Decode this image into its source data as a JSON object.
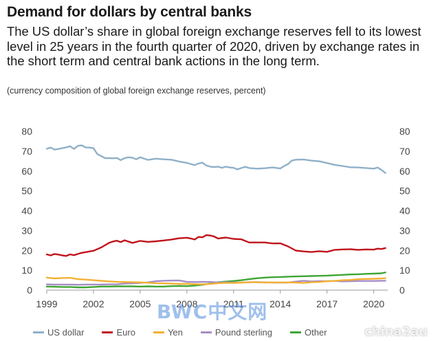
{
  "title": "Demand for dollars by central banks",
  "subtitle": "The US dollar’s share in global foreign exchange reserves fell to its lowest level in 25 years in the fourth quarter of 2020, driven by exchange rates in the short term and central bank actions in the long term.",
  "note": "(currency composition of global foreign exchange reserves, percent)",
  "watermark": "BWC中文网",
  "watermark2": "china2au",
  "chart_data": {
    "type": "line",
    "x_tick_labels": [
      "1999",
      "2002",
      "2005",
      "2008",
      "2011",
      "2014",
      "2017",
      "2020"
    ],
    "x_ticks": [
      1999,
      2002,
      2005,
      2008,
      2011,
      2014,
      2017,
      2020
    ],
    "xlim": [
      1999,
      2020.9
    ],
    "ylim": [
      0,
      80
    ],
    "y_ticks": [
      0,
      10,
      20,
      30,
      40,
      50,
      60,
      70,
      80
    ],
    "y_tick_labels": [
      "0",
      "10",
      "20",
      "30",
      "40",
      "50",
      "60",
      "70",
      "80"
    ],
    "right_axis_mirrors_left": true,
    "grid": false,
    "legend_position": "bottom",
    "series": [
      {
        "name": "US dollar",
        "color": "#8fb0c8",
        "x": [
          1999.0,
          1999.25,
          1999.5,
          1999.75,
          2000.0,
          2000.25,
          2000.5,
          2000.75,
          2001.0,
          2001.25,
          2001.5,
          2001.75,
          2002.0,
          2002.25,
          2002.5,
          2002.75,
          2003.0,
          2003.25,
          2003.5,
          2003.75,
          2004.0,
          2004.25,
          2004.5,
          2004.75,
          2005.0,
          2005.5,
          2006.0,
          2006.5,
          2007.0,
          2007.5,
          2008.0,
          2008.25,
          2008.5,
          2008.75,
          2009.0,
          2009.25,
          2009.5,
          2009.75,
          2010.0,
          2010.25,
          2010.5,
          2010.75,
          2011.0,
          2011.25,
          2011.5,
          2011.75,
          2012.0,
          2012.5,
          2013.0,
          2013.5,
          2014.0,
          2014.25,
          2014.5,
          2014.75,
          2015.0,
          2015.5,
          2016.0,
          2016.5,
          2017.0,
          2017.5,
          2018.0,
          2018.5,
          2019.0,
          2019.5,
          2020.0,
          2020.25,
          2020.5,
          2020.75
        ],
        "y": [
          71.2,
          71.8,
          70.8,
          71.1,
          71.5,
          71.9,
          72.5,
          71.1,
          72.7,
          72.9,
          71.9,
          71.8,
          71.5,
          68.5,
          67.5,
          66.5,
          66.5,
          66.4,
          66.6,
          65.5,
          66.5,
          66.9,
          66.7,
          65.9,
          66.9,
          65.6,
          66.2,
          65.9,
          65.7,
          64.8,
          64.1,
          63.5,
          63.0,
          63.8,
          64.2,
          62.8,
          62.2,
          62.0,
          62.2,
          61.6,
          62.2,
          61.8,
          61.6,
          60.8,
          61.5,
          62.1,
          61.5,
          61.2,
          61.4,
          61.8,
          61.3,
          62.5,
          63.5,
          65.3,
          65.7,
          65.8,
          65.2,
          64.9,
          64.0,
          63.1,
          62.5,
          61.9,
          61.8,
          61.5,
          61.2,
          61.8,
          60.5,
          59.0
        ]
      },
      {
        "name": "Euro",
        "color": "#c0141b",
        "x": [
          1999.0,
          1999.25,
          1999.5,
          1999.75,
          2000.0,
          2000.25,
          2000.5,
          2000.75,
          2001.0,
          2001.25,
          2001.5,
          2001.75,
          2002.0,
          2002.5,
          2003.0,
          2003.25,
          2003.5,
          2003.75,
          2004.0,
          2004.5,
          2005.0,
          2005.5,
          2006.0,
          2006.5,
          2007.0,
          2007.5,
          2008.0,
          2008.25,
          2008.5,
          2008.75,
          2009.0,
          2009.25,
          2009.5,
          2009.75,
          2010.0,
          2010.5,
          2011.0,
          2011.5,
          2012.0,
          2012.5,
          2013.0,
          2013.5,
          2014.0,
          2014.5,
          2015.0,
          2015.5,
          2016.0,
          2016.5,
          2017.0,
          2017.5,
          2018.0,
          2018.5,
          2019.0,
          2019.5,
          2020.0,
          2020.25,
          2020.5,
          2020.75
        ],
        "y": [
          18.0,
          17.5,
          18.2,
          17.9,
          17.5,
          17.2,
          18.0,
          17.6,
          18.2,
          18.8,
          19.1,
          19.5,
          19.8,
          21.5,
          23.8,
          24.5,
          24.9,
          24.2,
          25.1,
          23.8,
          24.8,
          24.3,
          24.6,
          25.0,
          25.5,
          26.1,
          26.4,
          26.0,
          25.5,
          26.8,
          26.6,
          27.7,
          27.5,
          27.0,
          26.0,
          26.5,
          25.8,
          25.6,
          24.0,
          24.0,
          24.0,
          23.5,
          23.6,
          22.0,
          19.9,
          19.5,
          19.2,
          19.6,
          19.3,
          20.3,
          20.5,
          20.6,
          20.3,
          20.5,
          20.4,
          20.9,
          20.7,
          21.2
        ]
      },
      {
        "name": "Yen",
        "color": "#f2b134",
        "x": [
          1999.0,
          1999.5,
          2000.0,
          2000.5,
          2001.0,
          2001.5,
          2002.0,
          2002.5,
          2003.0,
          2003.5,
          2004.0,
          2004.5,
          2005.0,
          2005.5,
          2006.0,
          2006.5,
          2007.0,
          2007.5,
          2008.0,
          2008.5,
          2009.0,
          2009.5,
          2010.0,
          2010.5,
          2011.0,
          2011.5,
          2012.0,
          2012.5,
          2013.0,
          2013.5,
          2014.0,
          2014.5,
          2015.0,
          2015.5,
          2016.0,
          2016.5,
          2017.0,
          2017.5,
          2018.0,
          2018.5,
          2019.0,
          2019.5,
          2020.0,
          2020.5,
          2020.75
        ],
        "y": [
          6.3,
          5.9,
          6.1,
          6.2,
          5.5,
          5.3,
          5.0,
          4.7,
          4.4,
          4.2,
          4.1,
          4.0,
          3.9,
          3.7,
          3.5,
          3.4,
          3.3,
          3.1,
          3.2,
          3.0,
          2.9,
          3.1,
          3.5,
          3.6,
          3.6,
          3.8,
          3.9,
          4.0,
          3.8,
          3.9,
          3.8,
          3.9,
          3.8,
          3.6,
          4.0,
          4.1,
          4.5,
          4.6,
          5.0,
          5.1,
          5.5,
          5.6,
          5.7,
          5.9,
          6.0
        ]
      },
      {
        "name": "Pound sterling",
        "color": "#a58dc4",
        "x": [
          1999.0,
          1999.5,
          2000.0,
          2000.5,
          2001.0,
          2001.5,
          2002.0,
          2002.5,
          2003.0,
          2003.5,
          2004.0,
          2004.5,
          2005.0,
          2005.5,
          2006.0,
          2006.5,
          2007.0,
          2007.5,
          2008.0,
          2008.5,
          2009.0,
          2009.5,
          2010.0,
          2010.5,
          2011.0,
          2011.5,
          2012.0,
          2012.5,
          2013.0,
          2013.5,
          2014.0,
          2014.5,
          2015.0,
          2015.5,
          2016.0,
          2016.5,
          2017.0,
          2017.5,
          2018.0,
          2018.5,
          2019.0,
          2019.5,
          2020.0,
          2020.5,
          2020.75
        ],
        "y": [
          2.9,
          2.8,
          2.8,
          2.8,
          2.7,
          2.8,
          2.8,
          2.8,
          2.9,
          2.9,
          3.3,
          3.4,
          3.6,
          3.9,
          4.5,
          4.7,
          4.8,
          4.9,
          4.2,
          4.1,
          4.2,
          4.1,
          3.9,
          3.9,
          3.8,
          3.8,
          4.0,
          4.0,
          3.9,
          3.8,
          3.8,
          3.8,
          4.3,
          4.7,
          4.4,
          4.5,
          4.5,
          4.6,
          4.4,
          4.5,
          4.6,
          4.6,
          4.6,
          4.7,
          4.7
        ]
      },
      {
        "name": "Other",
        "color": "#3fa535",
        "x": [
          1999.0,
          1999.5,
          2000.0,
          2000.5,
          2001.0,
          2001.5,
          2002.0,
          2002.5,
          2003.0,
          2003.5,
          2004.0,
          2004.5,
          2005.0,
          2005.5,
          2006.0,
          2006.5,
          2007.0,
          2007.5,
          2008.0,
          2008.5,
          2009.0,
          2009.5,
          2010.0,
          2010.5,
          2011.0,
          2011.5,
          2012.0,
          2012.5,
          2013.0,
          2013.5,
          2014.0,
          2014.5,
          2015.0,
          2015.5,
          2016.0,
          2016.5,
          2017.0,
          2017.5,
          2018.0,
          2018.5,
          2019.0,
          2019.5,
          2020.0,
          2020.5,
          2020.75
        ],
        "y": [
          1.8,
          1.7,
          1.6,
          1.6,
          1.4,
          1.4,
          1.6,
          1.8,
          1.8,
          1.9,
          1.9,
          1.9,
          1.8,
          1.9,
          1.8,
          1.8,
          2.0,
          2.1,
          2.0,
          2.3,
          2.7,
          3.3,
          4.0,
          4.3,
          4.6,
          5.0,
          5.5,
          6.0,
          6.3,
          6.5,
          6.6,
          6.8,
          6.9,
          7.0,
          7.1,
          7.2,
          7.3,
          7.5,
          7.7,
          7.9,
          8.0,
          8.2,
          8.3,
          8.5,
          8.9
        ]
      }
    ]
  }
}
